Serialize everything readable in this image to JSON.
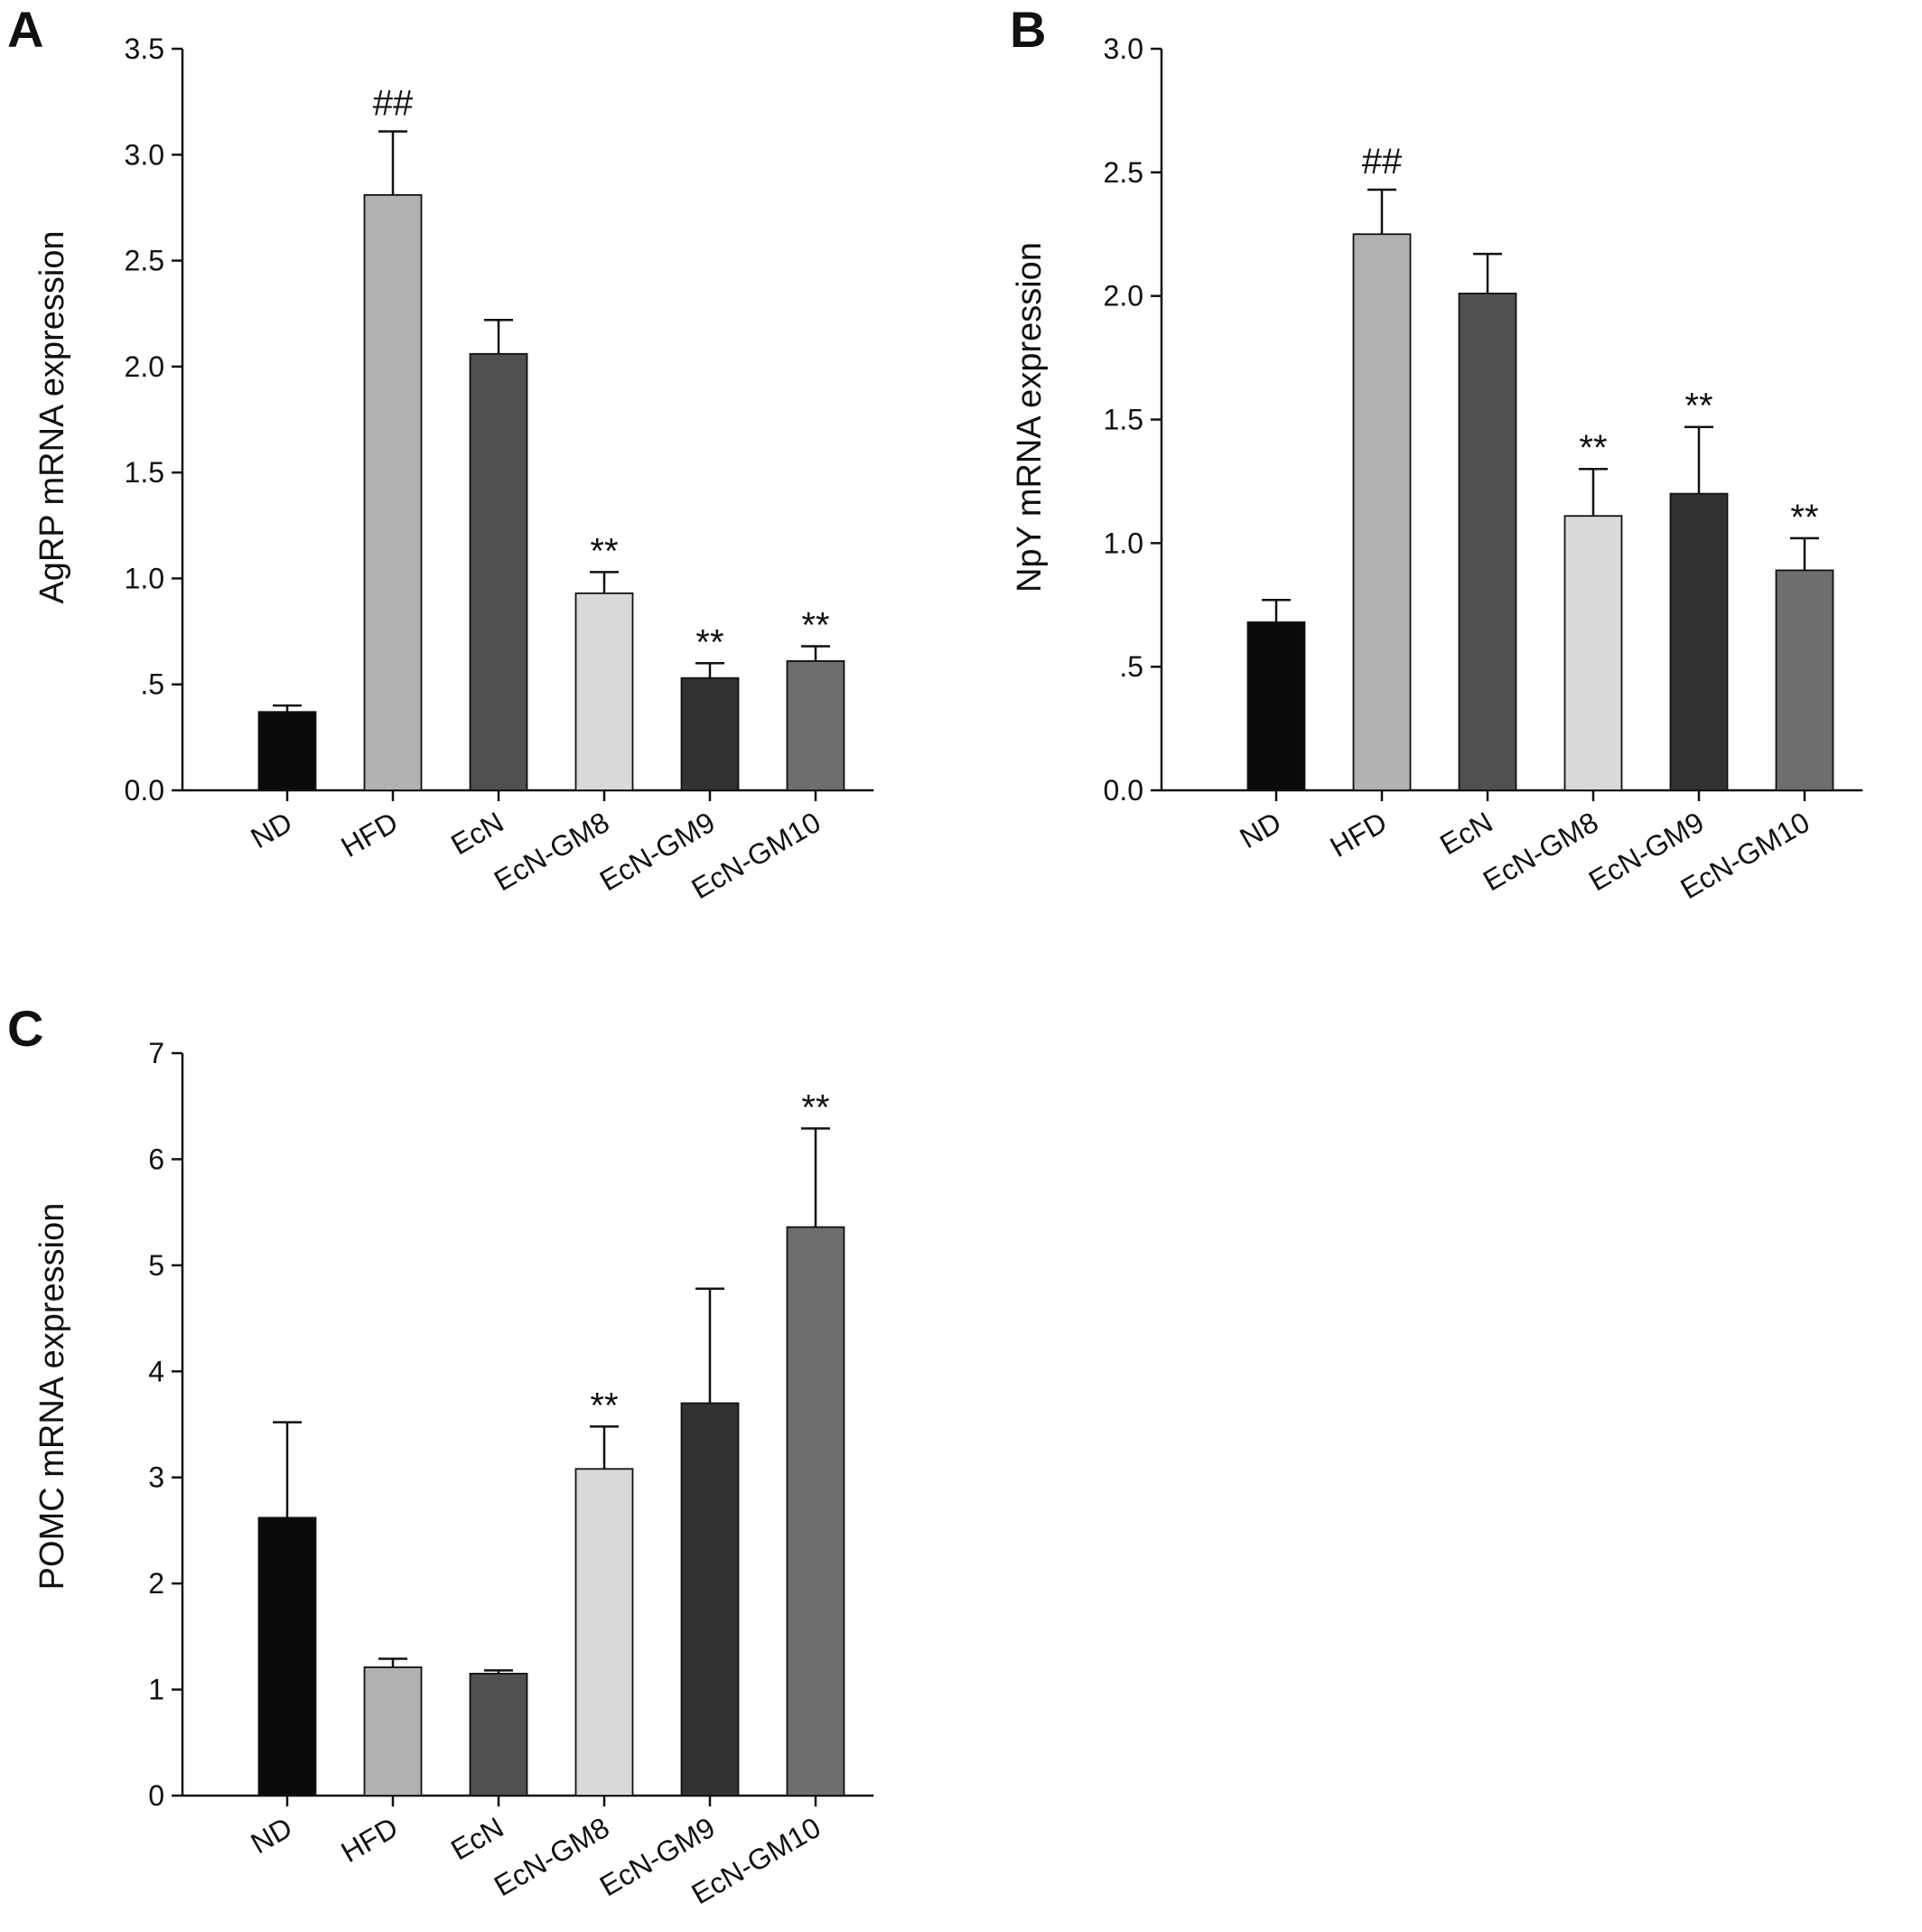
{
  "chart_data": [
    {
      "panel": "A",
      "type": "bar",
      "title": "",
      "xlabel": "",
      "ylabel": "AgRP mRNA expression",
      "ylim": [
        0,
        3.5
      ],
      "yticks": [
        0,
        0.5,
        1.0,
        1.5,
        2.0,
        2.5,
        3.0,
        3.5
      ],
      "ytick_labels": [
        "0.0",
        ".5",
        "1.0",
        "1.5",
        "2.0",
        "2.5",
        "3.0",
        "3.5"
      ],
      "categories": [
        "ND",
        "HFD",
        "EcN",
        "EcN-GM8",
        "EcN-GM9",
        "EcN-GM10"
      ],
      "values": [
        0.37,
        2.81,
        2.06,
        0.93,
        0.53,
        0.61
      ],
      "errors": [
        0.03,
        0.3,
        0.16,
        0.1,
        0.07,
        0.07
      ],
      "annotations": [
        "",
        "##",
        "",
        "**",
        "**",
        "**"
      ],
      "bar_colors": [
        "#0a0a0a",
        "#b2b2b2",
        "#505050",
        "#d9d9d9",
        "#323232",
        "#6e6e6e"
      ],
      "grid": false,
      "legend": "none"
    },
    {
      "panel": "B",
      "type": "bar",
      "title": "",
      "xlabel": "",
      "ylabel": "NpY mRNA expression",
      "ylim": [
        0,
        3.0
      ],
      "yticks": [
        0,
        0.5,
        1.0,
        1.5,
        2.0,
        2.5,
        3.0
      ],
      "ytick_labels": [
        "0.0",
        ".5",
        "1.0",
        "1.5",
        "2.0",
        "2.5",
        "3.0"
      ],
      "categories": [
        "ND",
        "HFD",
        "EcN",
        "EcN-GM8",
        "EcN-GM9",
        "EcN-GM10"
      ],
      "values": [
        0.68,
        2.25,
        2.01,
        1.11,
        1.2,
        0.89
      ],
      "errors": [
        0.09,
        0.18,
        0.16,
        0.19,
        0.27,
        0.13
      ],
      "annotations": [
        "",
        "##",
        "",
        "**",
        "**",
        "**"
      ],
      "bar_colors": [
        "#0a0a0a",
        "#b2b2b2",
        "#505050",
        "#d9d9d9",
        "#323232",
        "#6e6e6e"
      ],
      "grid": false,
      "legend": "none"
    },
    {
      "panel": "C",
      "type": "bar",
      "title": "",
      "xlabel": "",
      "ylabel": "POMC mRNA expression",
      "ylim": [
        0,
        7
      ],
      "yticks": [
        0,
        1,
        2,
        3,
        4,
        5,
        6,
        7
      ],
      "ytick_labels": [
        "0",
        "1",
        "2",
        "3",
        "4",
        "5",
        "6",
        "7"
      ],
      "categories": [
        "ND",
        "HFD",
        "EcN",
        "EcN-GM8",
        "EcN-GM9",
        "EcN-GM10"
      ],
      "values": [
        2.62,
        1.21,
        1.15,
        3.08,
        3.7,
        5.36
      ],
      "errors": [
        0.9,
        0.08,
        0.03,
        0.4,
        1.08,
        0.93
      ],
      "annotations": [
        "",
        "",
        "",
        "**",
        "",
        "**"
      ],
      "bar_colors": [
        "#0a0a0a",
        "#b2b2b2",
        "#505050",
        "#d9d9d9",
        "#323232",
        "#6e6e6e"
      ],
      "grid": false,
      "legend": "none"
    }
  ]
}
